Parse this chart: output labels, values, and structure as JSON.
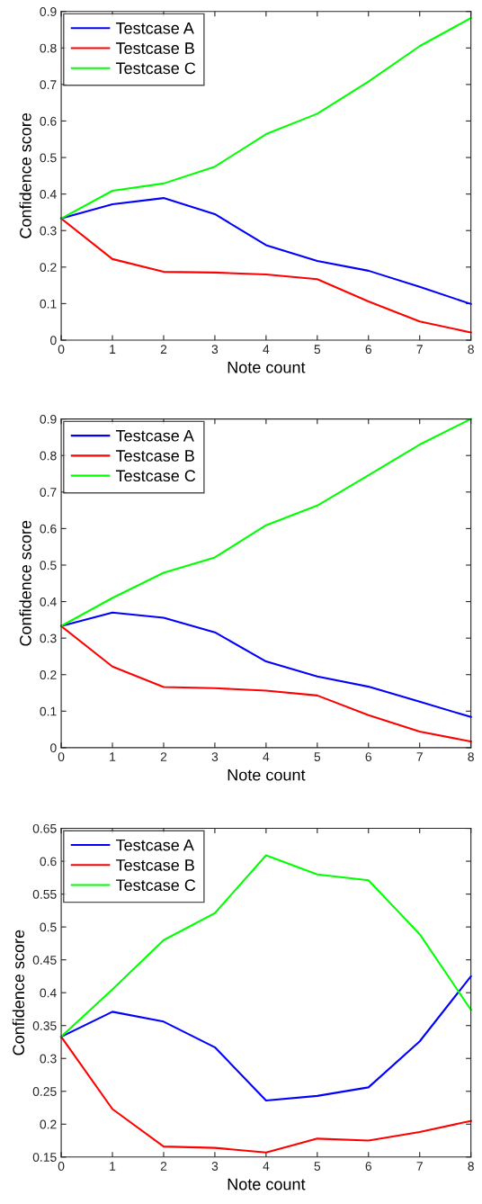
{
  "chart_data": [
    {
      "type": "line",
      "xlabel": "Note count",
      "ylabel": "Confidence score",
      "x": [
        0,
        1,
        2,
        3,
        4,
        5,
        6,
        7,
        8
      ],
      "xlim": [
        0,
        8
      ],
      "xticks": [
        0,
        1,
        2,
        3,
        4,
        5,
        6,
        7,
        8
      ],
      "ylim": [
        0,
        0.9
      ],
      "yticks": [
        0,
        0.1,
        0.2,
        0.3,
        0.4,
        0.5,
        0.6,
        0.7,
        0.8,
        0.9
      ],
      "legend": "top left",
      "grid": false,
      "series": [
        {
          "name": "Testcase A",
          "color": "#0000ff",
          "values": [
            0.333,
            0.372,
            0.389,
            0.345,
            0.26,
            0.217,
            0.19,
            0.146,
            0.099
          ]
        },
        {
          "name": "Testcase B",
          "color": "#ff0000",
          "values": [
            0.333,
            0.222,
            0.187,
            0.185,
            0.18,
            0.167,
            0.106,
            0.051,
            0.021
          ]
        },
        {
          "name": "Testcase C",
          "color": "#00ff00",
          "values": [
            0.333,
            0.409,
            0.429,
            0.475,
            0.564,
            0.62,
            0.708,
            0.805,
            0.882
          ]
        }
      ]
    },
    {
      "type": "line",
      "xlabel": "Note count",
      "ylabel": "Confidence score",
      "x": [
        0,
        1,
        2,
        3,
        4,
        5,
        6,
        7,
        8
      ],
      "xlim": [
        0,
        8
      ],
      "xticks": [
        0,
        1,
        2,
        3,
        4,
        5,
        6,
        7,
        8
      ],
      "ylim": [
        0,
        0.9
      ],
      "yticks": [
        0,
        0.1,
        0.2,
        0.3,
        0.4,
        0.5,
        0.6,
        0.7,
        0.8,
        0.9
      ],
      "legend": "top left",
      "grid": false,
      "series": [
        {
          "name": "Testcase A",
          "color": "#0000ff",
          "values": [
            0.333,
            0.37,
            0.356,
            0.316,
            0.236,
            0.195,
            0.167,
            0.126,
            0.084
          ]
        },
        {
          "name": "Testcase B",
          "color": "#ff0000",
          "values": [
            0.333,
            0.222,
            0.166,
            0.163,
            0.156,
            0.143,
            0.089,
            0.044,
            0.017
          ]
        },
        {
          "name": "Testcase C",
          "color": "#00ff00",
          "values": [
            0.333,
            0.41,
            0.479,
            0.521,
            0.609,
            0.663,
            0.746,
            0.83,
            0.9
          ]
        }
      ]
    },
    {
      "type": "line",
      "xlabel": "Note count",
      "ylabel": "Confidence score",
      "x": [
        0,
        1,
        2,
        3,
        4,
        5,
        6,
        7,
        8
      ],
      "xlim": [
        0,
        8
      ],
      "xticks": [
        0,
        1,
        2,
        3,
        4,
        5,
        6,
        7,
        8
      ],
      "ylim": [
        0.15,
        0.65
      ],
      "yticks": [
        0.15,
        0.2,
        0.25,
        0.3,
        0.35,
        0.4,
        0.45,
        0.5,
        0.55,
        0.6,
        0.65
      ],
      "legend": "top left",
      "grid": false,
      "series": [
        {
          "name": "Testcase A",
          "color": "#0000ff",
          "values": [
            0.333,
            0.371,
            0.356,
            0.317,
            0.236,
            0.243,
            0.256,
            0.326,
            0.425
          ]
        },
        {
          "name": "Testcase B",
          "color": "#ff0000",
          "values": [
            0.333,
            0.223,
            0.166,
            0.164,
            0.157,
            0.178,
            0.175,
            0.188,
            0.205
          ]
        },
        {
          "name": "Testcase C",
          "color": "#00ff00",
          "values": [
            0.333,
            0.405,
            0.48,
            0.521,
            0.609,
            0.58,
            0.571,
            0.489,
            0.374
          ]
        }
      ]
    }
  ]
}
